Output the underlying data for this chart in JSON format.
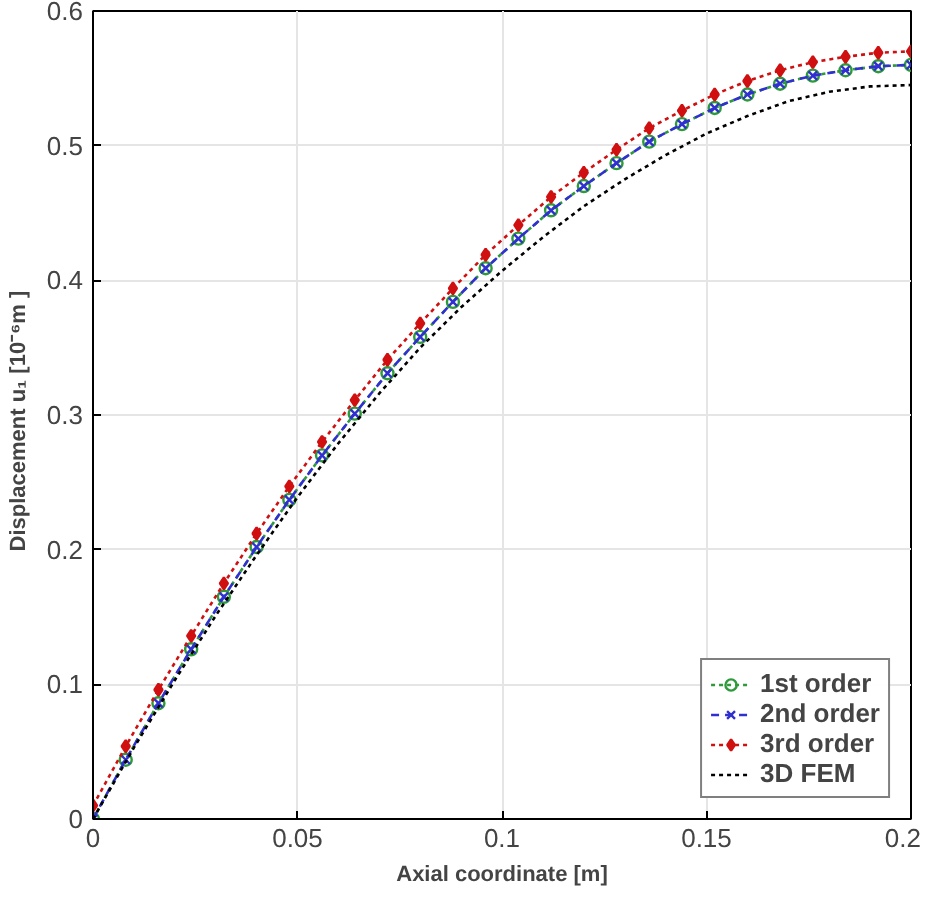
{
  "chart_data": {
    "type": "line",
    "xlabel": "Axial coordinate [m]",
    "ylabel": "Displacement  u₁  [10⁻⁶m ]",
    "xlim": [
      0,
      0.2
    ],
    "ylim": [
      0,
      0.6
    ],
    "xticks": [
      0,
      0.05,
      0.1,
      0.15,
      0.2
    ],
    "yticks": [
      0,
      0.1,
      0.2,
      0.3,
      0.4,
      0.5,
      0.6
    ],
    "grid": true,
    "legend": "bottom right",
    "x": [
      0,
      0.008,
      0.016,
      0.024,
      0.032,
      0.04,
      0.048,
      0.056,
      0.064,
      0.072,
      0.08,
      0.088,
      0.096,
      0.104,
      0.112,
      0.12,
      0.128,
      0.136,
      0.144,
      0.152,
      0.16,
      0.168,
      0.176,
      0.184,
      0.192,
      0.2
    ],
    "series": [
      {
        "name": "1st order",
        "color": "#2e9b3a",
        "marker": "circle",
        "line_style": "dotted",
        "values": [
          0,
          0.044,
          0.086,
          0.126,
          0.165,
          0.202,
          0.237,
          0.27,
          0.301,
          0.331,
          0.358,
          0.384,
          0.409,
          0.431,
          0.452,
          0.47,
          0.487,
          0.503,
          0.516,
          0.528,
          0.538,
          0.546,
          0.552,
          0.556,
          0.559,
          0.56
        ]
      },
      {
        "name": "2nd order",
        "color": "#3030d0",
        "marker": "cross",
        "line_style": "dashed",
        "values": [
          0,
          0.044,
          0.086,
          0.126,
          0.165,
          0.202,
          0.237,
          0.27,
          0.301,
          0.331,
          0.358,
          0.384,
          0.409,
          0.431,
          0.452,
          0.47,
          0.487,
          0.503,
          0.516,
          0.528,
          0.538,
          0.546,
          0.552,
          0.556,
          0.559,
          0.56
        ]
      },
      {
        "name": "3rd order",
        "color": "#d01010",
        "marker": "diamond",
        "line_style": "dotted",
        "values": [
          0.01,
          0.054,
          0.096,
          0.136,
          0.175,
          0.212,
          0.247,
          0.28,
          0.311,
          0.341,
          0.368,
          0.394,
          0.419,
          0.441,
          0.462,
          0.48,
          0.497,
          0.513,
          0.526,
          0.538,
          0.548,
          0.556,
          0.562,
          0.566,
          0.569,
          0.57
        ]
      },
      {
        "name": "3D FEM",
        "color": "#000000",
        "marker": "none",
        "line_style": "dotted",
        "x": [
          0,
          0.01,
          0.02,
          0.03,
          0.04,
          0.05,
          0.06,
          0.07,
          0.08,
          0.09,
          0.1,
          0.11,
          0.12,
          0.13,
          0.14,
          0.15,
          0.16,
          0.17,
          0.18,
          0.19,
          0.2
        ],
        "values": [
          0,
          0.053,
          0.103,
          0.151,
          0.196,
          0.239,
          0.279,
          0.316,
          0.35,
          0.38,
          0.407,
          0.432,
          0.455,
          0.475,
          0.493,
          0.509,
          0.522,
          0.533,
          0.54,
          0.544,
          0.545
        ]
      }
    ]
  }
}
